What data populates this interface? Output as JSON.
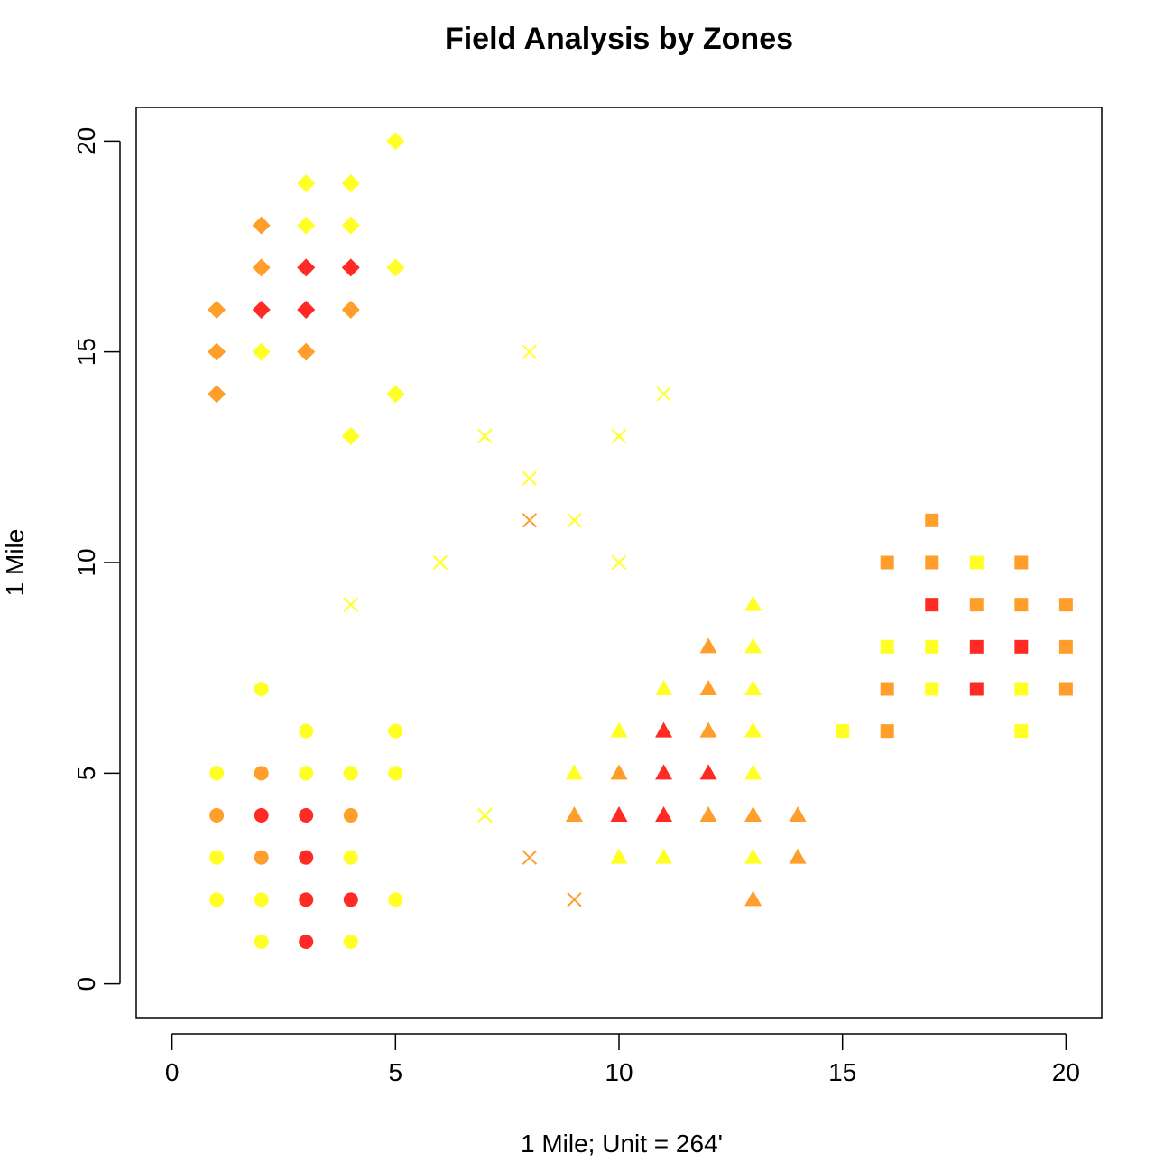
{
  "chart_data": {
    "type": "scatter",
    "title": "Field Analysis by Zones",
    "xlabel": "1 Mile; Unit = 264'",
    "ylabel": "1 Mile",
    "xlim": [
      -0.8,
      20.8
    ],
    "ylim": [
      -0.8,
      20.8
    ],
    "xticks": [
      0,
      5,
      10,
      15,
      20
    ],
    "yticks": [
      0,
      5,
      10,
      15,
      20
    ],
    "grid": false,
    "colors": {
      "red": "#ff2a24",
      "orange": "#ff9e2b",
      "yellow": "#ffff26"
    },
    "series": [
      {
        "shape": "diamond",
        "points": [
          [
            1,
            14,
            "orange"
          ],
          [
            1,
            15,
            "orange"
          ],
          [
            1,
            16,
            "orange"
          ],
          [
            2,
            15,
            "yellow"
          ],
          [
            2,
            16,
            "red"
          ],
          [
            2,
            17,
            "orange"
          ],
          [
            2,
            18,
            "orange"
          ],
          [
            3,
            15,
            "orange"
          ],
          [
            3,
            16,
            "red"
          ],
          [
            3,
            17,
            "red"
          ],
          [
            3,
            18,
            "yellow"
          ],
          [
            3,
            19,
            "yellow"
          ],
          [
            4,
            13,
            "yellow"
          ],
          [
            4,
            16,
            "orange"
          ],
          [
            4,
            17,
            "red"
          ],
          [
            4,
            18,
            "yellow"
          ],
          [
            4,
            19,
            "yellow"
          ],
          [
            5,
            14,
            "yellow"
          ],
          [
            5,
            17,
            "yellow"
          ],
          [
            5,
            20,
            "yellow"
          ]
        ]
      },
      {
        "shape": "cross",
        "points": [
          [
            4,
            9,
            "yellow"
          ],
          [
            6,
            10,
            "yellow"
          ],
          [
            7,
            13,
            "yellow"
          ],
          [
            7,
            4,
            "yellow"
          ],
          [
            8,
            15,
            "yellow"
          ],
          [
            8,
            12,
            "yellow"
          ],
          [
            8,
            11,
            "orange"
          ],
          [
            8,
            3,
            "orange"
          ],
          [
            9,
            11,
            "yellow"
          ],
          [
            9,
            2,
            "orange"
          ],
          [
            10,
            13,
            "yellow"
          ],
          [
            10,
            10,
            "yellow"
          ],
          [
            11,
            14,
            "yellow"
          ]
        ]
      },
      {
        "shape": "circle",
        "points": [
          [
            1,
            5,
            "yellow"
          ],
          [
            1,
            4,
            "orange"
          ],
          [
            1,
            3,
            "yellow"
          ],
          [
            1,
            2,
            "yellow"
          ],
          [
            2,
            7,
            "yellow"
          ],
          [
            2,
            5,
            "orange"
          ],
          [
            2,
            4,
            "red"
          ],
          [
            2,
            3,
            "orange"
          ],
          [
            2,
            2,
            "yellow"
          ],
          [
            2,
            1,
            "yellow"
          ],
          [
            3,
            6,
            "yellow"
          ],
          [
            3,
            5,
            "yellow"
          ],
          [
            3,
            4,
            "red"
          ],
          [
            3,
            3,
            "red"
          ],
          [
            3,
            2,
            "red"
          ],
          [
            3,
            1,
            "red"
          ],
          [
            4,
            5,
            "yellow"
          ],
          [
            4,
            4,
            "orange"
          ],
          [
            4,
            3,
            "yellow"
          ],
          [
            4,
            2,
            "red"
          ],
          [
            4,
            1,
            "yellow"
          ],
          [
            5,
            6,
            "yellow"
          ],
          [
            5,
            5,
            "yellow"
          ],
          [
            5,
            2,
            "yellow"
          ]
        ]
      },
      {
        "shape": "triangle",
        "points": [
          [
            9,
            5,
            "yellow"
          ],
          [
            9,
            4,
            "orange"
          ],
          [
            10,
            6,
            "yellow"
          ],
          [
            10,
            5,
            "orange"
          ],
          [
            10,
            4,
            "red"
          ],
          [
            10,
            3,
            "yellow"
          ],
          [
            11,
            7,
            "yellow"
          ],
          [
            11,
            6,
            "red"
          ],
          [
            11,
            5,
            "red"
          ],
          [
            11,
            4,
            "red"
          ],
          [
            11,
            3,
            "yellow"
          ],
          [
            12,
            8,
            "orange"
          ],
          [
            12,
            7,
            "orange"
          ],
          [
            12,
            6,
            "orange"
          ],
          [
            12,
            5,
            "red"
          ],
          [
            12,
            4,
            "orange"
          ],
          [
            13,
            9,
            "yellow"
          ],
          [
            13,
            8,
            "yellow"
          ],
          [
            13,
            7,
            "yellow"
          ],
          [
            13,
            6,
            "yellow"
          ],
          [
            13,
            5,
            "yellow"
          ],
          [
            13,
            4,
            "orange"
          ],
          [
            13,
            3,
            "yellow"
          ],
          [
            13,
            2,
            "orange"
          ],
          [
            14,
            4,
            "orange"
          ],
          [
            14,
            3,
            "orange"
          ]
        ]
      },
      {
        "shape": "square",
        "points": [
          [
            15,
            6,
            "yellow"
          ],
          [
            16,
            10,
            "orange"
          ],
          [
            16,
            8,
            "yellow"
          ],
          [
            16,
            7,
            "orange"
          ],
          [
            16,
            6,
            "orange"
          ],
          [
            17,
            11,
            "orange"
          ],
          [
            17,
            10,
            "orange"
          ],
          [
            17,
            9,
            "red"
          ],
          [
            17,
            8,
            "yellow"
          ],
          [
            17,
            7,
            "yellow"
          ],
          [
            18,
            10,
            "yellow"
          ],
          [
            18,
            9,
            "orange"
          ],
          [
            18,
            8,
            "red"
          ],
          [
            18,
            7,
            "red"
          ],
          [
            19,
            10,
            "orange"
          ],
          [
            19,
            9,
            "orange"
          ],
          [
            19,
            8,
            "red"
          ],
          [
            19,
            7,
            "yellow"
          ],
          [
            19,
            6,
            "yellow"
          ],
          [
            20,
            9,
            "orange"
          ],
          [
            20,
            8,
            "orange"
          ],
          [
            20,
            7,
            "orange"
          ]
        ]
      }
    ]
  }
}
